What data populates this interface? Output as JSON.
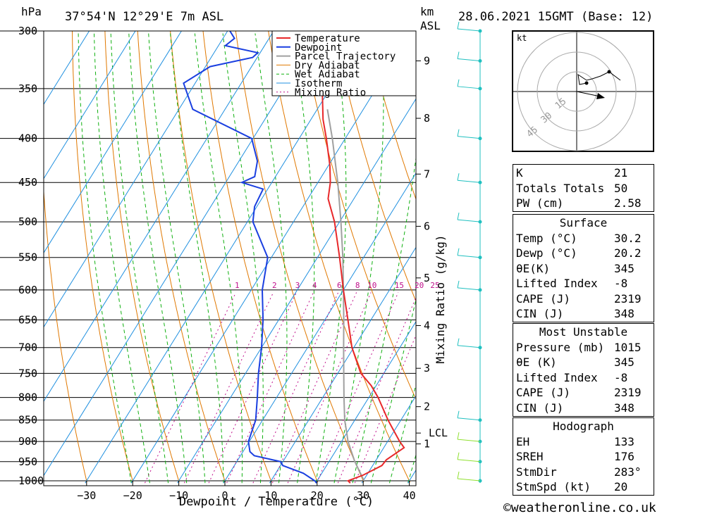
{
  "header": {
    "location": "37°54'N 12°29'E 7m ASL",
    "datetime": "28.06.2021 15GMT (Base: 12)",
    "pressure_unit": "hPa",
    "height_unit_top": "km",
    "height_unit_bottom": "ASL"
  },
  "footer": {
    "credit": "©weatheronline.co.uk"
  },
  "legend": [
    "Temperature",
    "Dewpoint",
    "Parcel Trajectory",
    "Dry Adiabat",
    "Wet Adiabat",
    "Isotherm",
    "Mixing Ratio"
  ],
  "colors": {
    "temperature": "#e8282a",
    "dewpoint": "#1a3fe0",
    "parcel": "#a0a0a0",
    "dry_adiabat": "#e07800",
    "wet_adiabat": "#10b010",
    "isotherm": "#2090e0",
    "mixing_ratio": "#c0108c",
    "wind": "#20c0c0"
  },
  "chart_data": {
    "type": "skew-t",
    "xlabel": "Dewpoint / Temperature (°C)",
    "ylabel": "hPa",
    "secondary_ylabel": "Mixing Ratio (g/kg)",
    "x_ticks": [
      -30,
      -20,
      -10,
      0,
      10,
      20,
      30,
      40
    ],
    "pressure_levels": [
      300,
      350,
      400,
      450,
      500,
      550,
      600,
      650,
      700,
      750,
      800,
      850,
      900,
      950,
      1000
    ],
    "height_km_ticks": [
      {
        "label": "9",
        "p": 325
      },
      {
        "label": "8",
        "p": 379
      },
      {
        "label": "7",
        "p": 440
      },
      {
        "label": "6",
        "p": 506
      },
      {
        "label": "5",
        "p": 581
      },
      {
        "label": "4",
        "p": 660
      },
      {
        "label": "3",
        "p": 740
      },
      {
        "label": "2",
        "p": 820
      },
      {
        "label": "LCL",
        "p": 880
      },
      {
        "label": "1",
        "p": 906
      }
    ],
    "mixing_ratio_labels": [
      "1",
      "2",
      "3",
      "4",
      "6",
      "8",
      "10",
      "15",
      "20",
      "25"
    ],
    "temperature": [
      {
        "p": 1006,
        "t": 27.5
      },
      {
        "p": 1000,
        "t": 26.7
      },
      {
        "p": 985,
        "t": 29.2
      },
      {
        "p": 960,
        "t": 32.0
      },
      {
        "p": 945,
        "t": 32.2
      },
      {
        "p": 915,
        "t": 34.4
      },
      {
        "p": 900,
        "t": 32.6
      },
      {
        "p": 870,
        "t": 29.4
      },
      {
        "p": 850,
        "t": 27.2
      },
      {
        "p": 800,
        "t": 22.0
      },
      {
        "p": 775,
        "t": 18.9
      },
      {
        "p": 750,
        "t": 15.0
      },
      {
        "p": 700,
        "t": 9.6
      },
      {
        "p": 650,
        "t": 5.0
      },
      {
        "p": 600,
        "t": 0.0
      },
      {
        "p": 550,
        "t": -5.2
      },
      {
        "p": 500,
        "t": -11.1
      },
      {
        "p": 470,
        "t": -15.6
      },
      {
        "p": 450,
        "t": -17.3
      },
      {
        "p": 430,
        "t": -19.7
      },
      {
        "p": 400,
        "t": -24.1
      },
      {
        "p": 380,
        "t": -27.4
      },
      {
        "p": 350,
        "t": -31.7
      },
      {
        "p": 320,
        "t": -36.8
      },
      {
        "p": 300,
        "t": -40.3
      }
    ],
    "dewpoint": [
      {
        "p": 1006,
        "t": 20.2
      },
      {
        "p": 1000,
        "t": 19.5
      },
      {
        "p": 980,
        "t": 16.0
      },
      {
        "p": 960,
        "t": 10.5
      },
      {
        "p": 950,
        "t": 9.5
      },
      {
        "p": 935,
        "t": 3.0
      },
      {
        "p": 925,
        "t": 1.5
      },
      {
        "p": 900,
        "t": -0.2
      },
      {
        "p": 850,
        "t": -1.5
      },
      {
        "p": 800,
        "t": -4.2
      },
      {
        "p": 750,
        "t": -7.2
      },
      {
        "p": 700,
        "t": -10.0
      },
      {
        "p": 650,
        "t": -13.4
      },
      {
        "p": 600,
        "t": -17.6
      },
      {
        "p": 550,
        "t": -20.8
      },
      {
        "p": 500,
        "t": -28.8
      },
      {
        "p": 480,
        "t": -30.5
      },
      {
        "p": 458,
        "t": -31.0
      },
      {
        "p": 450,
        "t": -36.5
      },
      {
        "p": 443,
        "t": -34.5
      },
      {
        "p": 425,
        "t": -36.0
      },
      {
        "p": 400,
        "t": -40.3
      },
      {
        "p": 370,
        "t": -57.0
      },
      {
        "p": 345,
        "t": -62.5
      },
      {
        "p": 330,
        "t": -59.0
      },
      {
        "p": 322,
        "t": -51.0
      },
      {
        "p": 318,
        "t": -50.5
      },
      {
        "p": 312,
        "t": -58.5
      },
      {
        "p": 306,
        "t": -57.5
      },
      {
        "p": 300,
        "t": -59.5
      }
    ],
    "parcel": [
      {
        "p": 1000,
        "t": 30.2
      },
      {
        "p": 950,
        "t": 25.6
      },
      {
        "p": 900,
        "t": 21.4
      },
      {
        "p": 880,
        "t": 20.0
      },
      {
        "p": 850,
        "t": 17.8
      },
      {
        "p": 800,
        "t": 14.6
      },
      {
        "p": 750,
        "t": 11.3
      },
      {
        "p": 700,
        "t": 7.8
      },
      {
        "p": 650,
        "t": 4.1
      },
      {
        "p": 600,
        "t": 0.0
      },
      {
        "p": 550,
        "t": -4.5
      },
      {
        "p": 500,
        "t": -9.7
      },
      {
        "p": 450,
        "t": -15.7
      },
      {
        "p": 400,
        "t": -22.8
      },
      {
        "p": 370,
        "t": -27.8
      }
    ],
    "wind_barb_levels": [
      300,
      325,
      350,
      400,
      450,
      500,
      550,
      600,
      700,
      850,
      900,
      950,
      1000
    ]
  },
  "hodograph": {
    "unit": "kt",
    "ring_labels": [
      "15",
      "30",
      "45"
    ]
  },
  "indices": [
    {
      "label": "K",
      "value": "21"
    },
    {
      "label": "Totals Totals",
      "value": "50"
    },
    {
      "label": "PW (cm)",
      "value": "2.58"
    }
  ],
  "surface": {
    "title": "Surface",
    "rows": [
      {
        "label": "Temp (°C)",
        "value": "30.2"
      },
      {
        "label": "Dewp (°C)",
        "value": "20.2"
      },
      {
        "label": "θE(K)",
        "value": "345"
      },
      {
        "label": "Lifted Index",
        "value": "-8"
      },
      {
        "label": "CAPE (J)",
        "value": "2319"
      },
      {
        "label": "CIN (J)",
        "value": "348"
      }
    ]
  },
  "most_unstable": {
    "title": "Most Unstable",
    "rows": [
      {
        "label": "Pressure (mb)",
        "value": "1015"
      },
      {
        "label": "θE (K)",
        "value": "345"
      },
      {
        "label": "Lifted Index",
        "value": "-8"
      },
      {
        "label": "CAPE (J)",
        "value": "2319"
      },
      {
        "label": "CIN (J)",
        "value": "348"
      }
    ]
  },
  "hodograph_table": {
    "title": "Hodograph",
    "rows": [
      {
        "label": "EH",
        "value": "133"
      },
      {
        "label": "SREH",
        "value": "176"
      },
      {
        "label": "StmDir",
        "value": "283°"
      },
      {
        "label": "StmSpd (kt)",
        "value": "20"
      }
    ]
  }
}
